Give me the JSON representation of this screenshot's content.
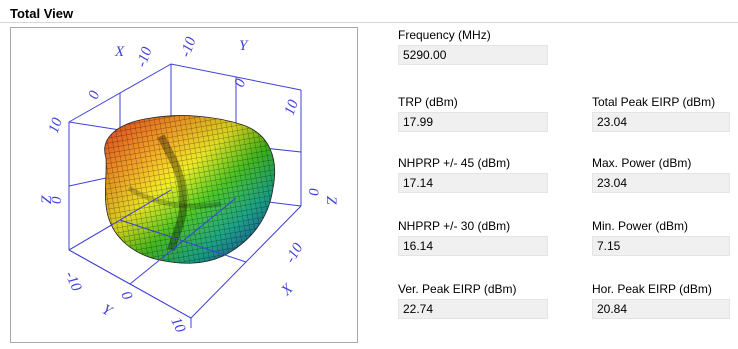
{
  "section": {
    "title": "Total View"
  },
  "plot": {
    "axis_labels": {
      "x_top": "X",
      "y_top": "Y",
      "z_right": "Z",
      "z_left": "Z",
      "y_bottom": "Y",
      "x_bottom": "X"
    },
    "tick_labels": {
      "top_neg10_a": "-10",
      "top_neg10_b": "-10",
      "top_0_a": "0",
      "top_0_b": "0",
      "top_10_left": "10",
      "top_10_right": "10",
      "z_0": "0",
      "z_left_0": "0",
      "bottom_neg10_a": "-10",
      "bottom_0_a": "0",
      "bottom_10_a": "10",
      "bottom_neg10_b": "-10"
    },
    "colors": {
      "axes": "#3f3fd8"
    }
  },
  "fields": {
    "frequency": {
      "label": "Frequency (MHz)",
      "value": "5290.00"
    },
    "trp": {
      "label": "TRP (dBm)",
      "value": "17.99"
    },
    "total_peak_eirp": {
      "label": "Total Peak EIRP (dBm)",
      "value": "23.04"
    },
    "nhprp45": {
      "label": "NHPRP +/- 45 (dBm)",
      "value": "17.14"
    },
    "max_power": {
      "label": "Max. Power (dBm)",
      "value": "23.04"
    },
    "nhprp30": {
      "label": "NHPRP +/- 30 (dBm)",
      "value": "16.14"
    },
    "min_power": {
      "label": "Min. Power (dBm)",
      "value": "7.15"
    },
    "ver_peak_eirp": {
      "label": "Ver. Peak EIRP (dBm)",
      "value": "22.74"
    },
    "hor_peak_eirp": {
      "label": "Hor. Peak EIRP (dBm)",
      "value": "20.84"
    }
  }
}
